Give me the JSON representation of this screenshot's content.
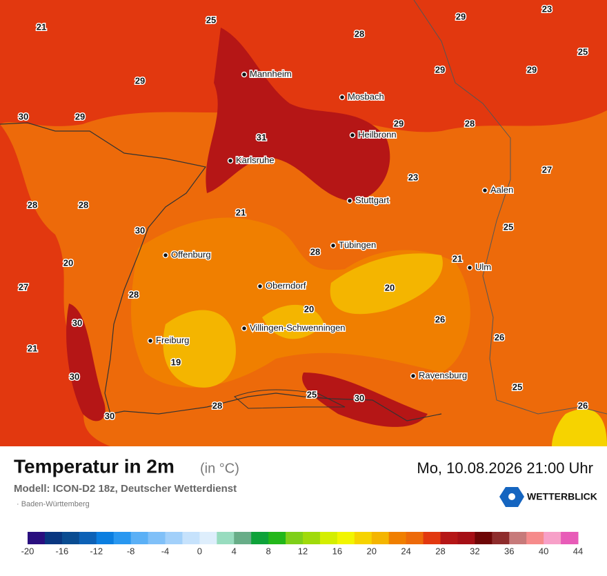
{
  "header": {
    "title": "Temperatur in 2m",
    "unit": "(in °C)",
    "datetime": "Mo, 10.08.2026 21:00 Uhr",
    "model": "Modell: ICON-D2 18z, Deutscher Wetterdienst",
    "region": "· Baden-Württemberg",
    "logo": "WETTERBLICK"
  },
  "map": {
    "cities": [
      "Mannheim",
      "Mosbach",
      "Heilbronn",
      "Karlsruhe",
      "Stuttgart",
      "Aalen",
      "Tübingen",
      "Offenburg",
      "Ulm",
      "Oberndorf",
      "Villingen-Schwenningen",
      "Freiburg",
      "Ravensburg"
    ],
    "temperatures": [
      21,
      25,
      28,
      29,
      23,
      25,
      29,
      29,
      29,
      30,
      29,
      31,
      29,
      28,
      27,
      23,
      28,
      28,
      21,
      25,
      30,
      28,
      21,
      20,
      27,
      20,
      28,
      20,
      30,
      26,
      26,
      21,
      19,
      30,
      25,
      25,
      30,
      28,
      26,
      30
    ]
  },
  "legend": {
    "ticks": [
      -20,
      -16,
      -12,
      -8,
      -4,
      0,
      4,
      8,
      12,
      16,
      20,
      24,
      28,
      32,
      36,
      40,
      44
    ],
    "colors": [
      "#2a0f7f",
      "#093680",
      "#0a4c91",
      "#0d61b6",
      "#0b7ee0",
      "#2997f0",
      "#5bb0f6",
      "#80c0f8",
      "#a2d0fa",
      "#c6e2fc",
      "#deeefc",
      "#98dcbf",
      "#68ad88",
      "#0ea23a",
      "#23b71a",
      "#7fcf19",
      "#a0da0b",
      "#d4ee00",
      "#f2f500",
      "#f6d300",
      "#f4b500",
      "#f07f00",
      "#ed6a0a",
      "#e2380f",
      "#b51616",
      "#a50f15",
      "#6e0606",
      "#8e2c2c",
      "#c77a7a",
      "#f68b8b",
      "#f7a0c8",
      "#e85cb8"
    ]
  }
}
